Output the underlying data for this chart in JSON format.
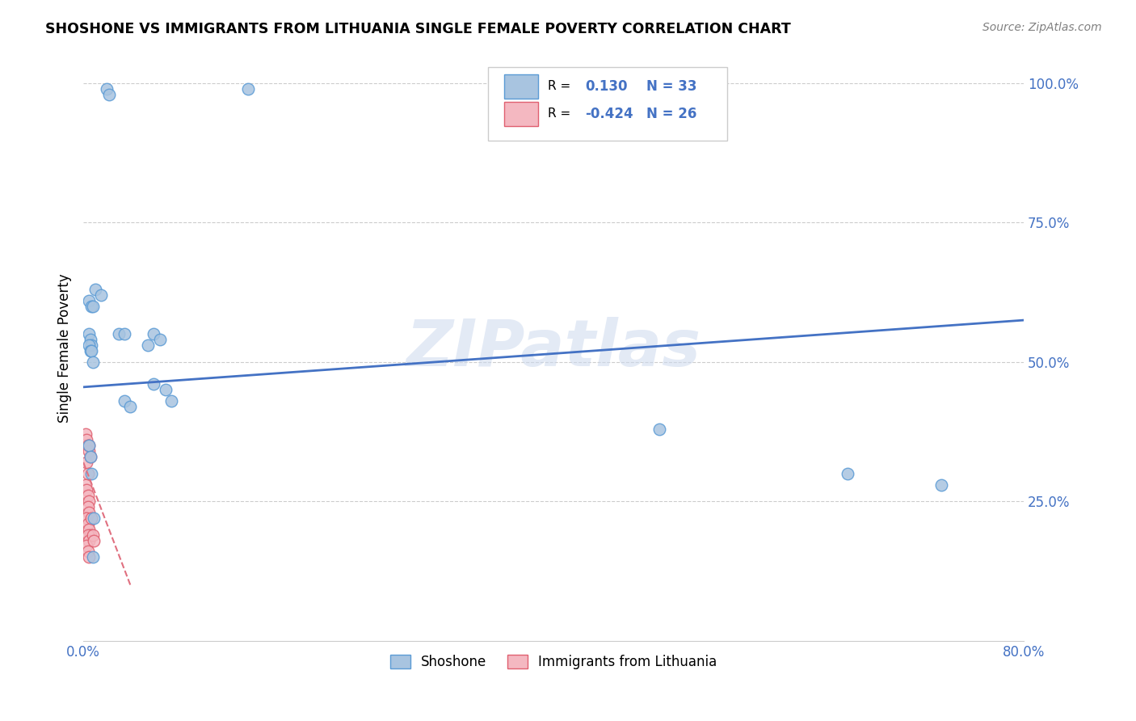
{
  "title": "SHOSHONE VS IMMIGRANTS FROM LITHUANIA SINGLE FEMALE POVERTY CORRELATION CHART",
  "source": "Source: ZipAtlas.com",
  "ylabel": "Single Female Poverty",
  "xlim": [
    0.0,
    0.8
  ],
  "ylim": [
    0.0,
    1.05
  ],
  "shoshone_x": [
    0.02,
    0.022,
    0.14,
    0.01,
    0.015,
    0.005,
    0.007,
    0.008,
    0.005,
    0.006,
    0.007,
    0.005,
    0.006,
    0.007,
    0.008,
    0.03,
    0.035,
    0.06,
    0.065,
    0.055,
    0.06,
    0.07,
    0.075,
    0.035,
    0.04,
    0.49,
    0.65,
    0.73,
    0.005,
    0.006,
    0.007,
    0.008,
    0.009
  ],
  "shoshone_y": [
    0.99,
    0.98,
    0.99,
    0.63,
    0.62,
    0.61,
    0.6,
    0.6,
    0.55,
    0.54,
    0.53,
    0.53,
    0.52,
    0.52,
    0.5,
    0.55,
    0.55,
    0.55,
    0.54,
    0.53,
    0.46,
    0.45,
    0.43,
    0.43,
    0.42,
    0.38,
    0.3,
    0.28,
    0.35,
    0.33,
    0.3,
    0.15,
    0.22
  ],
  "lithuania_x": [
    0.002,
    0.003,
    0.004,
    0.005,
    0.003,
    0.004,
    0.002,
    0.003,
    0.004,
    0.005,
    0.004,
    0.005,
    0.003,
    0.004,
    0.005,
    0.006,
    0.004,
    0.005,
    0.003,
    0.004,
    0.005,
    0.005,
    0.006,
    0.007,
    0.008,
    0.009
  ],
  "lithuania_y": [
    0.37,
    0.36,
    0.35,
    0.34,
    0.32,
    0.3,
    0.28,
    0.27,
    0.26,
    0.25,
    0.24,
    0.23,
    0.22,
    0.21,
    0.2,
    0.19,
    0.19,
    0.18,
    0.17,
    0.16,
    0.15,
    0.35,
    0.33,
    0.22,
    0.19,
    0.18
  ],
  "shoshone_color": "#a8c4e0",
  "shoshone_edge_color": "#5b9bd5",
  "lithuania_color": "#f4b8c1",
  "lithuania_edge_color": "#e06070",
  "trend_blue_color": "#4472c4",
  "trend_pink_color": "#e07080",
  "watermark": "ZIPatlas",
  "background_color": "#ffffff",
  "grid_color": "#cccccc",
  "shoshone_trend_x0": 0.0,
  "shoshone_trend_y0": 0.455,
  "shoshone_trend_x1": 0.8,
  "shoshone_trend_y1": 0.575,
  "lithuania_trend_x0": 0.0,
  "lithuania_trend_y0": 0.32,
  "lithuania_trend_x1": 0.04,
  "lithuania_trend_y1": 0.1
}
